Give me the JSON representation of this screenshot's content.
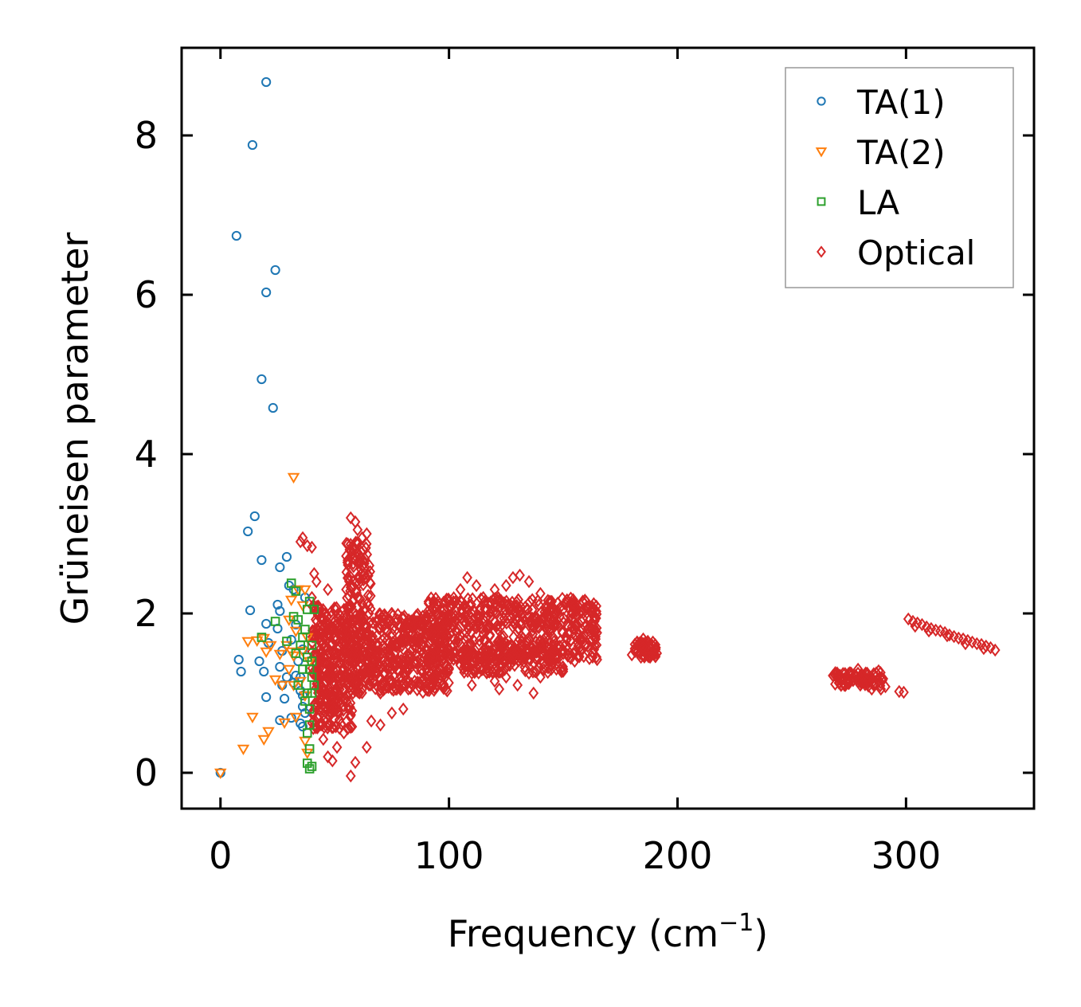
{
  "chart_data": {
    "type": "scatter",
    "title": "",
    "xlabel": "Frequency (cm",
    "xlabel_sup": "−1",
    "xlabel_close": ")",
    "ylabel": "Grüneisen parameter",
    "xlim": [
      -17,
      356
    ],
    "ylim": [
      -0.45,
      9.1
    ],
    "xticks": [
      0,
      100,
      200,
      300
    ],
    "yticks": [
      0,
      2,
      4,
      6,
      8
    ],
    "xtick_labels": [
      "0",
      "100",
      "200",
      "300"
    ],
    "ytick_labels": [
      "0",
      "2",
      "4",
      "6",
      "8"
    ],
    "legend_position": "top-right",
    "series": [
      {
        "name": "TA(1)",
        "marker": "circle",
        "color": "#1f77b4",
        "points": [
          [
            0,
            0.0
          ],
          [
            20,
            8.67
          ],
          [
            14,
            7.88
          ],
          [
            7,
            6.74
          ],
          [
            24,
            6.31
          ],
          [
            20,
            6.03
          ],
          [
            18,
            4.94
          ],
          [
            23,
            4.58
          ],
          [
            15,
            3.22
          ],
          [
            12,
            3.03
          ],
          [
            18,
            2.67
          ],
          [
            29,
            2.71
          ],
          [
            26,
            2.58
          ],
          [
            13,
            2.04
          ],
          [
            25,
            2.11
          ],
          [
            26,
            2.03
          ],
          [
            20,
            1.87
          ],
          [
            25,
            1.81
          ],
          [
            21,
            1.63
          ],
          [
            27,
            1.53
          ],
          [
            31,
            1.67
          ],
          [
            33,
            1.86
          ],
          [
            8,
            1.42
          ],
          [
            17,
            1.4
          ],
          [
            26,
            1.33
          ],
          [
            9,
            1.27
          ],
          [
            19,
            1.27
          ],
          [
            29,
            1.2
          ],
          [
            32,
            1.13
          ],
          [
            33,
            1.22
          ],
          [
            35,
            1.2
          ],
          [
            27,
            1.1
          ],
          [
            35,
            1.03
          ],
          [
            20,
            0.95
          ],
          [
            28,
            0.93
          ],
          [
            36,
            0.97
          ],
          [
            36,
            0.83
          ],
          [
            26,
            0.66
          ],
          [
            31,
            0.69
          ],
          [
            35,
            0.62
          ],
          [
            36,
            0.58
          ],
          [
            37,
            0.75
          ],
          [
            30,
            2.35
          ],
          [
            32,
            2.3
          ],
          [
            37,
            2.2
          ],
          [
            34,
            1.4
          ],
          [
            36,
            1.55
          ]
        ]
      },
      {
        "name": "TA(2)",
        "marker": "triangle-down",
        "color": "#ff7f0e",
        "points": [
          [
            0,
            0.0
          ],
          [
            32,
            3.71
          ],
          [
            10,
            0.3
          ],
          [
            14,
            0.7
          ],
          [
            19,
            0.42
          ],
          [
            21,
            0.52
          ],
          [
            28,
            0.63
          ],
          [
            33,
            0.7
          ],
          [
            16,
            1.66
          ],
          [
            12,
            1.65
          ],
          [
            19,
            1.69
          ],
          [
            20,
            1.52
          ],
          [
            22,
            1.6
          ],
          [
            24,
            1.17
          ],
          [
            27,
            1.1
          ],
          [
            30,
            1.3
          ],
          [
            31,
            1.52
          ],
          [
            33,
            1.78
          ],
          [
            30,
            1.92
          ],
          [
            31,
            2.17
          ],
          [
            34,
            2.3
          ],
          [
            36,
            1.53
          ],
          [
            38,
            1.7
          ],
          [
            37,
            2.3
          ],
          [
            26,
            1.49
          ],
          [
            29,
            1.6
          ],
          [
            32,
            1.47
          ],
          [
            35,
            1.15
          ],
          [
            37,
            0.97
          ],
          [
            37,
            0.4
          ],
          [
            38,
            0.25
          ],
          [
            36,
            2.1
          ],
          [
            39,
            1.4
          ],
          [
            32,
            1.1
          ]
        ]
      },
      {
        "name": "LA",
        "marker": "square",
        "color": "#2ca02c",
        "points": [
          [
            31,
            2.38
          ],
          [
            33,
            2.28
          ],
          [
            24,
            1.9
          ],
          [
            32,
            1.96
          ],
          [
            34,
            1.92
          ],
          [
            38,
            2.05
          ],
          [
            39,
            2.15
          ],
          [
            18,
            1.7
          ],
          [
            29,
            1.65
          ],
          [
            33,
            1.5
          ],
          [
            35,
            1.6
          ],
          [
            37,
            1.8
          ],
          [
            38,
            1.45
          ],
          [
            39,
            1.3
          ],
          [
            40,
            1.6
          ],
          [
            40,
            1.2
          ],
          [
            34,
            1.1
          ],
          [
            36,
            1.3
          ],
          [
            38,
            1.0
          ],
          [
            39,
            0.8
          ],
          [
            40,
            1.0
          ],
          [
            39,
            0.6
          ],
          [
            38,
            0.5
          ],
          [
            39,
            0.3
          ],
          [
            38,
            0.12
          ],
          [
            39,
            0.05
          ],
          [
            40,
            0.08
          ],
          [
            37,
            0.9
          ],
          [
            36,
            1.7
          ],
          [
            40,
            1.4
          ],
          [
            41,
            2.05
          ],
          [
            41,
            1.1
          ]
        ]
      },
      {
        "name": "Optical",
        "marker": "diamond",
        "color": "#d62728",
        "points": [
          [
            35,
            2.9
          ],
          [
            36,
            2.95
          ],
          [
            38,
            2.85
          ],
          [
            40,
            2.83
          ],
          [
            41,
            2.5
          ],
          [
            42,
            2.4
          ],
          [
            40,
            2.2
          ],
          [
            42,
            1.7
          ],
          [
            42,
            1.2
          ],
          [
            43,
            0.9
          ],
          [
            44,
            0.6
          ],
          [
            45,
            0.42
          ],
          [
            47,
            0.2
          ],
          [
            49,
            0.15
          ],
          [
            51,
            0.32
          ],
          [
            54,
            0.5
          ],
          [
            57,
            -0.04
          ],
          [
            59,
            0.13
          ],
          [
            64,
            0.32
          ],
          [
            56,
            0.8
          ],
          [
            58,
            1.0
          ],
          [
            61,
            1.1
          ],
          [
            66,
            0.65
          ],
          [
            70,
            0.6
          ],
          [
            75,
            0.75
          ],
          [
            80,
            0.8
          ],
          [
            57,
            3.2
          ],
          [
            59,
            3.15
          ],
          [
            60,
            3.05
          ],
          [
            62,
            2.95
          ],
          [
            64,
            3.0
          ],
          [
            55,
            2.72
          ],
          [
            58,
            2.8
          ],
          [
            61,
            2.7
          ],
          [
            63,
            2.5
          ],
          [
            55,
            2.3
          ],
          [
            60,
            2.2
          ],
          [
            65,
            2.0
          ],
          [
            68,
            1.9
          ],
          [
            72,
            1.95
          ],
          [
            75,
            2.0
          ],
          [
            78,
            1.85
          ],
          [
            82,
            1.8
          ],
          [
            86,
            1.9
          ],
          [
            90,
            1.95
          ],
          [
            95,
            2.1
          ],
          [
            100,
            2.15
          ],
          [
            105,
            2.3
          ],
          [
            108,
            2.45
          ],
          [
            112,
            2.35
          ],
          [
            115,
            2.2
          ],
          [
            120,
            2.3
          ],
          [
            125,
            2.35
          ],
          [
            128,
            2.45
          ],
          [
            131,
            2.48
          ],
          [
            135,
            2.4
          ],
          [
            140,
            2.25
          ],
          [
            145,
            2.15
          ],
          [
            150,
            2.05
          ],
          [
            155,
            2.1
          ],
          [
            160,
            2.15
          ],
          [
            163,
            2.05
          ],
          [
            164,
            1.8
          ],
          [
            163,
            1.5
          ],
          [
            160,
            1.6
          ],
          [
            155,
            1.4
          ],
          [
            150,
            1.3
          ],
          [
            145,
            1.35
          ],
          [
            140,
            1.2
          ],
          [
            135,
            1.25
          ],
          [
            130,
            1.1
          ],
          [
            125,
            1.2
          ],
          [
            120,
            1.15
          ],
          [
            115,
            1.3
          ],
          [
            110,
            1.25
          ],
          [
            105,
            1.35
          ],
          [
            100,
            1.3
          ],
          [
            95,
            1.25
          ],
          [
            90,
            1.2
          ],
          [
            85,
            1.15
          ],
          [
            80,
            1.1
          ],
          [
            75,
            1.05
          ],
          [
            70,
            1.0
          ],
          [
            65,
            1.1
          ],
          [
            62,
            1.05
          ],
          [
            52,
            1.2
          ],
          [
            50,
            1.4
          ],
          [
            48,
            1.6
          ],
          [
            50,
            1.8
          ],
          [
            53,
            1.9
          ],
          [
            56,
            1.55
          ],
          [
            62,
            1.45
          ],
          [
            68,
            1.45
          ],
          [
            74,
            1.5
          ],
          [
            80,
            1.55
          ],
          [
            88,
            1.6
          ],
          [
            96,
            1.7
          ],
          [
            104,
            1.8
          ],
          [
            112,
            1.85
          ],
          [
            120,
            1.9
          ],
          [
            128,
            1.9
          ],
          [
            136,
            1.85
          ],
          [
            144,
            1.8
          ],
          [
            152,
            1.75
          ],
          [
            158,
            1.9
          ],
          [
            92,
            1.45
          ],
          [
            100,
            1.55
          ],
          [
            108,
            1.6
          ],
          [
            116,
            1.55
          ],
          [
            124,
            1.6
          ],
          [
            132,
            1.65
          ],
          [
            140,
            1.6
          ],
          [
            148,
            1.55
          ],
          [
            66,
            1.3
          ],
          [
            72,
            1.25
          ],
          [
            58,
            1.3
          ],
          [
            46,
            1.0
          ],
          [
            44,
            1.5
          ],
          [
            46,
            2.0
          ],
          [
            47,
            2.3
          ],
          [
            122,
            1.05
          ],
          [
            137,
            1.0
          ],
          [
            147,
            1.3
          ],
          [
            110,
            1.1
          ],
          [
            180,
            1.48
          ],
          [
            182,
            1.55
          ],
          [
            183,
            1.62
          ],
          [
            185,
            1.68
          ],
          [
            187,
            1.65
          ],
          [
            189,
            1.6
          ],
          [
            191,
            1.5
          ],
          [
            188,
            1.45
          ],
          [
            186,
            1.5
          ],
          [
            184,
            1.45
          ],
          [
            190,
            1.55
          ],
          [
            185,
            1.58
          ],
          [
            268,
            1.22
          ],
          [
            270,
            1.2
          ],
          [
            273,
            1.18
          ],
          [
            276,
            1.25
          ],
          [
            279,
            1.3
          ],
          [
            281,
            1.22
          ],
          [
            283,
            1.15
          ],
          [
            286,
            1.12
          ],
          [
            288,
            1.28
          ],
          [
            290,
            1.18
          ],
          [
            291,
            1.08
          ],
          [
            289,
            1.05
          ],
          [
            285,
            1.05
          ],
          [
            280,
            1.1
          ],
          [
            275,
            1.12
          ],
          [
            278,
            1.2
          ],
          [
            283,
            1.25
          ],
          [
            297,
            1.02
          ],
          [
            299,
            1.01
          ],
          [
            301,
            1.93
          ],
          [
            303,
            1.9
          ],
          [
            305,
            1.88
          ],
          [
            307,
            1.86
          ],
          [
            309,
            1.83
          ],
          [
            311,
            1.81
          ],
          [
            313,
            1.79
          ],
          [
            315,
            1.78
          ],
          [
            317,
            1.76
          ],
          [
            319,
            1.73
          ],
          [
            321,
            1.71
          ],
          [
            323,
            1.69
          ],
          [
            325,
            1.68
          ],
          [
            327,
            1.66
          ],
          [
            329,
            1.64
          ],
          [
            331,
            1.62
          ],
          [
            333,
            1.61
          ],
          [
            335,
            1.59
          ],
          [
            337,
            1.57
          ],
          [
            339,
            1.54
          ],
          [
            304,
            1.84
          ],
          [
            310,
            1.78
          ],
          [
            318,
            1.72
          ],
          [
            326,
            1.62
          ],
          [
            334,
            1.56
          ]
        ],
        "dense_regions": [
          {
            "x_range": [
              40,
              58
            ],
            "y_range": [
              0.55,
              2.1
            ],
            "count": 340,
            "seed": 3
          },
          {
            "x_range": [
              55,
              66
            ],
            "y_range": [
              1.1,
              2.9
            ],
            "count": 150,
            "seed": 7
          },
          {
            "x_range": [
              58,
              100
            ],
            "y_range": [
              1.0,
              2.0
            ],
            "count": 420,
            "seed": 11
          },
          {
            "x_range": [
              90,
              165
            ],
            "y_range": [
              1.4,
              2.2
            ],
            "count": 560,
            "seed": 17
          },
          {
            "x_range": [
              105,
              150
            ],
            "y_range": [
              1.25,
              1.55
            ],
            "count": 140,
            "seed": 23
          },
          {
            "x_range": [
              181,
              191
            ],
            "y_range": [
              1.45,
              1.65
            ],
            "count": 40,
            "seed": 29
          },
          {
            "x_range": [
              268,
              290
            ],
            "y_range": [
              1.08,
              1.26
            ],
            "count": 70,
            "seed": 31
          }
        ]
      }
    ]
  }
}
